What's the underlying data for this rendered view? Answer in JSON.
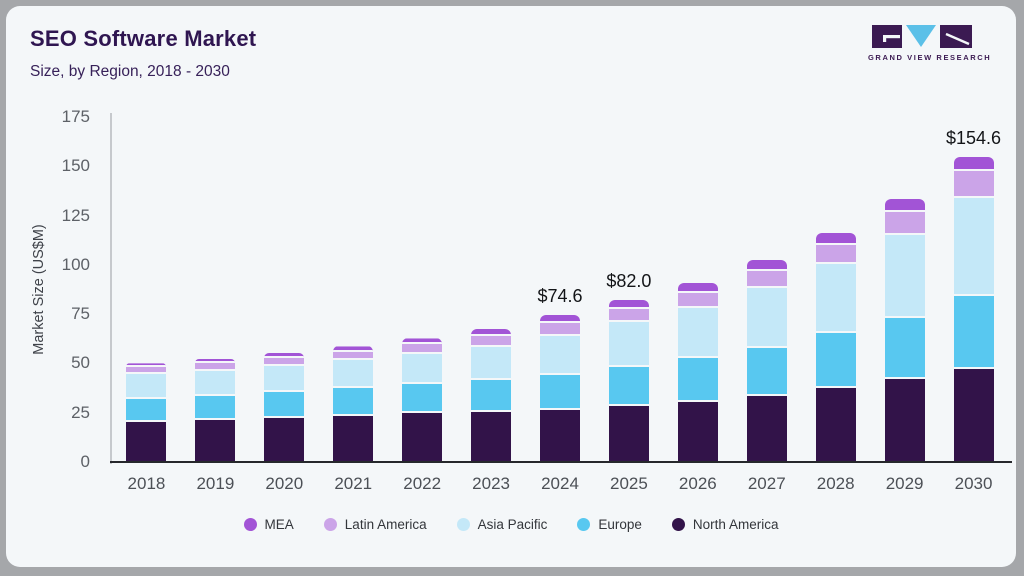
{
  "card": {
    "title": "SEO Software Market",
    "subtitle": "Size, by Region, 2018 - 2030"
  },
  "brand": {
    "name": "GRAND VIEW RESEARCH",
    "logo_dark": "#3b1a52",
    "logo_blue": "#5bc0e8"
  },
  "chart_data": {
    "type": "bar",
    "stacked": true,
    "title": "SEO Software Market",
    "subtitle": "Size, by Region, 2018 - 2030",
    "xlabel": "",
    "ylabel": "Market Size (US$M)",
    "ylim": [
      0,
      175
    ],
    "yticks": [
      0,
      25,
      50,
      75,
      100,
      125,
      150,
      175
    ],
    "grid": false,
    "legend_position": "bottom",
    "categories": [
      "2018",
      "2019",
      "2020",
      "2021",
      "2022",
      "2023",
      "2024",
      "2025",
      "2026",
      "2027",
      "2028",
      "2029",
      "2030"
    ],
    "series": [
      {
        "name": "North America",
        "color": "#321349",
        "values": [
          20.5,
          21.3,
          22.3,
          23.5,
          24.8,
          25.6,
          26.2,
          28.4,
          30.4,
          33.5,
          37.3,
          41.9,
          47.4
        ]
      },
      {
        "name": "Europe",
        "color": "#58c8f0",
        "values": [
          11.7,
          12.3,
          13.0,
          13.9,
          14.7,
          16.0,
          17.8,
          19.7,
          22.3,
          24.3,
          27.9,
          31.3,
          36.9
        ]
      },
      {
        "name": "Asia Pacific",
        "color": "#c4e8f8",
        "values": [
          12.3,
          12.8,
          13.5,
          14.3,
          15.5,
          17.0,
          20.0,
          23.0,
          25.6,
          30.3,
          35.0,
          42.2,
          49.6
        ]
      },
      {
        "name": "Latin America",
        "color": "#cba4e8",
        "values": [
          3.5,
          3.7,
          4.0,
          4.3,
          4.7,
          5.3,
          6.7,
          6.6,
          7.5,
          8.7,
          10.0,
          11.5,
          13.7
        ]
      },
      {
        "name": "MEA",
        "color": "#a254d6",
        "values": [
          2.1,
          2.3,
          2.5,
          2.7,
          3.0,
          3.5,
          3.9,
          4.3,
          4.9,
          5.5,
          6.0,
          6.5,
          7.0
        ]
      }
    ],
    "totals": [
      50.1,
      52.4,
      55.3,
      58.7,
      62.7,
      67.4,
      74.6,
      82.0,
      90.7,
      102.3,
      116.2,
      133.4,
      154.6
    ],
    "annotations": [
      {
        "category": "2024",
        "label": "$74.6"
      },
      {
        "category": "2025",
        "label": "$82.0"
      },
      {
        "category": "2030",
        "label": "$154.6"
      }
    ],
    "legend": [
      {
        "label": "MEA",
        "color": "#a254d6"
      },
      {
        "label": "Latin America",
        "color": "#cba4e8"
      },
      {
        "label": "Asia Pacific",
        "color": "#c4e8f8"
      },
      {
        "label": "Europe",
        "color": "#58c8f0"
      },
      {
        "label": "North America",
        "color": "#321349"
      }
    ]
  }
}
